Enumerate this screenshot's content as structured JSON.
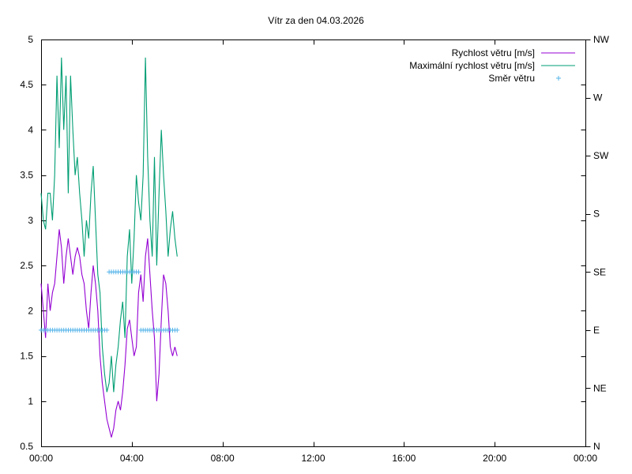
{
  "chart_data": {
    "type": "line",
    "title": "Vítr za den 04.03.2026",
    "xlabel": "",
    "ylabel": "",
    "x_unit": "hours",
    "xlim": [
      0,
      24
    ],
    "ylim": [
      0.5,
      5
    ],
    "x_ticks": [
      {
        "value": 0,
        "label": "00:00"
      },
      {
        "value": 4,
        "label": "04:00"
      },
      {
        "value": 8,
        "label": "08:00"
      },
      {
        "value": 12,
        "label": "12:00"
      },
      {
        "value": 16,
        "label": "16:00"
      },
      {
        "value": 20,
        "label": "20:00"
      },
      {
        "value": 24,
        "label": "00:00"
      }
    ],
    "y_ticks": [
      0.5,
      1,
      1.5,
      2,
      2.5,
      3,
      3.5,
      4,
      4.5,
      5
    ],
    "y2_lim": [
      0,
      7
    ],
    "y2_ticks": [
      {
        "value": 0,
        "label": "N"
      },
      {
        "value": 1,
        "label": "NE"
      },
      {
        "value": 2,
        "label": "E"
      },
      {
        "value": 3,
        "label": "SE"
      },
      {
        "value": 4,
        "label": "S"
      },
      {
        "value": 5,
        "label": "SW"
      },
      {
        "value": 6,
        "label": "W"
      },
      {
        "value": 7,
        "label": "NW"
      }
    ],
    "legend_position": "top-right",
    "grid": false,
    "series": [
      {
        "name": "Rychlost větru [m/s]",
        "color": "#9400d3",
        "style": "line",
        "x": [
          0,
          0.1,
          0.2,
          0.3,
          0.4,
          0.5,
          0.6,
          0.7,
          0.8,
          0.9,
          1.0,
          1.1,
          1.2,
          1.3,
          1.4,
          1.5,
          1.6,
          1.7,
          1.8,
          1.9,
          2.0,
          2.1,
          2.2,
          2.3,
          2.4,
          2.5,
          2.6,
          2.7,
          2.8,
          2.9,
          3.0,
          3.1,
          3.2,
          3.3,
          3.4,
          3.5,
          3.6,
          3.7,
          3.8,
          3.9,
          4.0,
          4.1,
          4.2,
          4.3,
          4.4,
          4.5,
          4.6,
          4.7,
          4.8,
          4.9,
          5.0,
          5.1,
          5.2,
          5.3,
          5.4,
          5.5,
          5.6,
          5.7,
          5.8,
          5.9,
          6.0
        ],
        "y": [
          2.3,
          2.0,
          1.7,
          2.3,
          2.0,
          2.2,
          2.3,
          2.6,
          2.9,
          2.7,
          2.3,
          2.6,
          2.8,
          2.6,
          2.4,
          2.6,
          2.7,
          2.6,
          2.4,
          2.3,
          2.0,
          1.8,
          2.2,
          2.5,
          2.3,
          2.0,
          1.5,
          1.2,
          1.0,
          0.8,
          0.7,
          0.6,
          0.7,
          0.9,
          1.0,
          0.9,
          1.1,
          1.4,
          1.8,
          1.9,
          1.7,
          1.5,
          1.6,
          2.2,
          2.4,
          2.1,
          2.6,
          2.8,
          2.4,
          2.0,
          1.7,
          1.0,
          1.3,
          1.9,
          2.4,
          2.3,
          2.0,
          1.6,
          1.5,
          1.6,
          1.5
        ]
      },
      {
        "name": "Maximální rychlost větru [m/s]",
        "color": "#009e73",
        "style": "line",
        "x": [
          0,
          0.1,
          0.2,
          0.3,
          0.4,
          0.5,
          0.6,
          0.7,
          0.8,
          0.9,
          1.0,
          1.1,
          1.2,
          1.3,
          1.4,
          1.5,
          1.6,
          1.7,
          1.8,
          1.9,
          2.0,
          2.1,
          2.2,
          2.3,
          2.4,
          2.5,
          2.6,
          2.7,
          2.8,
          2.9,
          3.0,
          3.1,
          3.2,
          3.3,
          3.4,
          3.5,
          3.6,
          3.7,
          3.8,
          3.9,
          4.0,
          4.1,
          4.2,
          4.3,
          4.4,
          4.5,
          4.6,
          4.7,
          4.8,
          4.9,
          5.0,
          5.1,
          5.2,
          5.3,
          5.4,
          5.5,
          5.6,
          5.7,
          5.8,
          5.9,
          6.0
        ],
        "y": [
          3.3,
          3.0,
          2.9,
          3.3,
          3.3,
          3.0,
          3.5,
          4.6,
          3.8,
          4.8,
          4.0,
          4.6,
          3.3,
          4.6,
          4.0,
          3.5,
          3.7,
          3.3,
          3.0,
          2.6,
          3.0,
          2.8,
          3.3,
          3.6,
          3.0,
          2.4,
          2.2,
          1.6,
          1.3,
          1.1,
          1.2,
          1.5,
          1.1,
          1.4,
          1.6,
          1.9,
          2.1,
          1.7,
          2.6,
          2.9,
          2.3,
          2.8,
          3.5,
          3.2,
          3.0,
          3.5,
          4.8,
          3.7,
          3.0,
          2.6,
          3.7,
          2.5,
          3.3,
          4.0,
          3.5,
          3.1,
          2.6,
          2.9,
          3.1,
          2.8,
          2.6
        ]
      },
      {
        "name": "Směr větru",
        "color": "#56b4e9",
        "style": "points",
        "axis": "right",
        "segments": [
          {
            "from": 0.0,
            "to": 2.9,
            "value": 2
          },
          {
            "from": 3.0,
            "to": 4.3,
            "value": 3
          },
          {
            "from": 4.4,
            "to": 6.0,
            "value": 2
          }
        ]
      }
    ]
  }
}
